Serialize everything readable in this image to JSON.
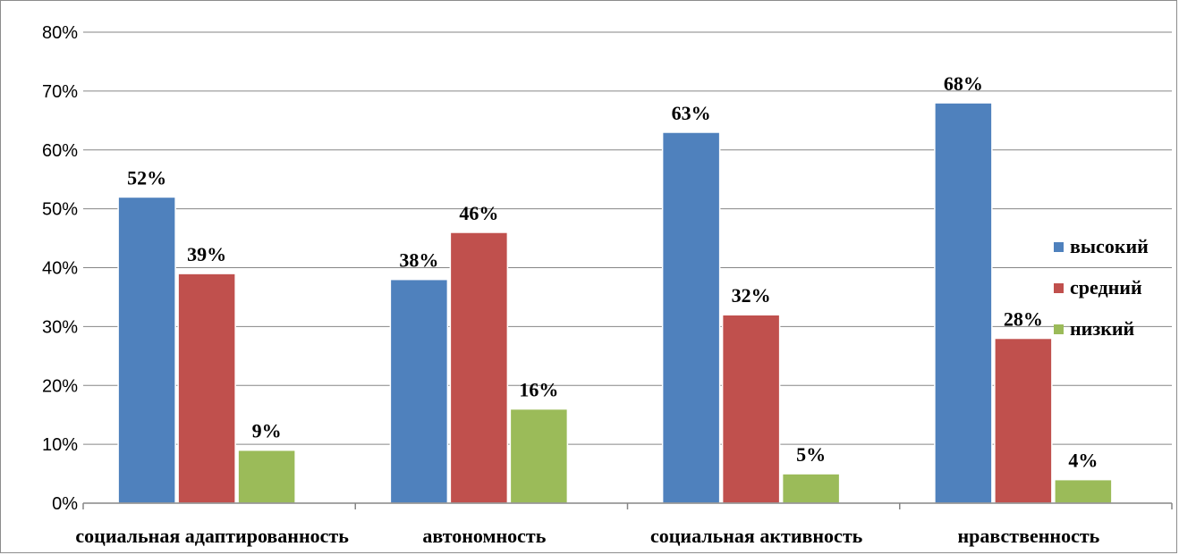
{
  "chart_data": {
    "type": "bar",
    "title": "",
    "xlabel": "",
    "ylabel": "",
    "ylim": [
      0,
      80
    ],
    "ytick_step": 10,
    "ytick_labels": [
      "0%",
      "10%",
      "20%",
      "30%",
      "40%",
      "50%",
      "60%",
      "70%",
      "80%"
    ],
    "grid": true,
    "legend_position": "right",
    "categories": [
      "социальная адаптированность",
      "автономность",
      "социальная активность",
      "нравственность"
    ],
    "series": [
      {
        "name": "высокий",
        "color": "#4f81bd",
        "values": [
          52,
          38,
          63,
          68
        ],
        "labels": [
          "52%",
          "38%",
          "63%",
          "68%"
        ]
      },
      {
        "name": "средний",
        "color": "#c0504d",
        "values": [
          39,
          46,
          32,
          28
        ],
        "labels": [
          "39%",
          "46%",
          "32%",
          "28%"
        ]
      },
      {
        "name": "низкий",
        "color": "#9bbb59",
        "values": [
          9,
          16,
          5,
          4
        ],
        "labels": [
          "9%",
          "16%",
          "5%",
          "4%"
        ]
      }
    ]
  }
}
